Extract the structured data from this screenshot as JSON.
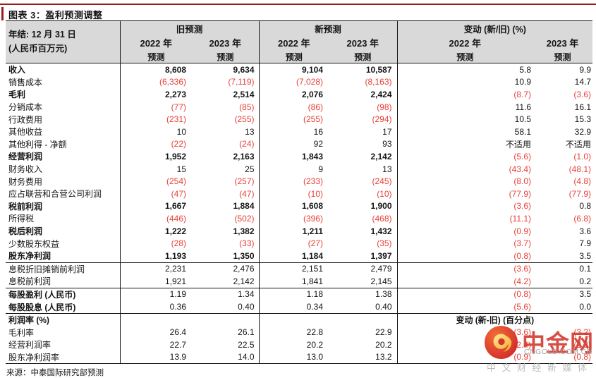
{
  "title": "图表 3：盈利预测调整",
  "source": "来源：中泰国际研究部预测",
  "colors": {
    "accent_maroon": "#9a1c20",
    "negative_red": "#e8403a",
    "header_gray": "#d9d9d9",
    "watermark_red": "#d2362b"
  },
  "header": {
    "label_line1": "年结: 12 月 31 日",
    "label_line2": "(人民币百万元)",
    "groups": [
      {
        "label": "旧预测"
      },
      {
        "label": "新预测"
      },
      {
        "label": "变动 (新/旧) (%)"
      }
    ],
    "year_2022": "2022 年",
    "year_2023": "2023 年",
    "forecast": "预测"
  },
  "table": {
    "rows": [
      {
        "label": "收入",
        "v": [
          "8,608",
          "9,634",
          "9,104",
          "10,587",
          "5.8",
          "9.9"
        ],
        "b": 2
      },
      {
        "label": "销售成本",
        "v": [
          "(6,336)",
          "(7,119)",
          "(7,028)",
          "(8,163)",
          "10.9",
          "14.7"
        ],
        "b": 0
      },
      {
        "label": "毛利",
        "v": [
          "2,273",
          "2,514",
          "2,076",
          "2,424",
          "(8.7)",
          "(3.6)"
        ],
        "b": 2
      },
      {
        "label": "分销成本",
        "v": [
          "(77)",
          "(85)",
          "(86)",
          "(98)",
          "11.6",
          "16.1"
        ],
        "b": 0
      },
      {
        "label": "行政费用",
        "v": [
          "(231)",
          "(255)",
          "(255)",
          "(294)",
          "10.5",
          "15.3"
        ],
        "b": 0
      },
      {
        "label": "其他收益",
        "v": [
          "10",
          "13",
          "16",
          "17",
          "58.1",
          "32.9"
        ],
        "b": 0
      },
      {
        "label": "其他利得 - 净额",
        "v": [
          "(22)",
          "(24)",
          "92",
          "93",
          "不适用",
          "不适用"
        ],
        "b": 0
      },
      {
        "label": "经营利润",
        "v": [
          "1,952",
          "2,163",
          "1,843",
          "2,142",
          "(5.6)",
          "(1.0)"
        ],
        "b": 2
      },
      {
        "label": "财务收入",
        "v": [
          "15",
          "25",
          "9",
          "13",
          "(43.4)",
          "(48.1)"
        ],
        "b": 0
      },
      {
        "label": "财务费用",
        "v": [
          "(254)",
          "(257)",
          "(233)",
          "(245)",
          "(8.0)",
          "(4.8)"
        ],
        "b": 0
      },
      {
        "label": "应占联营和合营公司利润",
        "v": [
          "(47)",
          "(47)",
          "(10)",
          "(10)",
          "(77.9)",
          "(77.9)"
        ],
        "b": 0
      },
      {
        "label": "税前利润",
        "v": [
          "1,667",
          "1,884",
          "1,608",
          "1,900",
          "(3.6)",
          "0.8"
        ],
        "b": 2
      },
      {
        "label": "所得税",
        "v": [
          "(446)",
          "(502)",
          "(396)",
          "(468)",
          "(11.1)",
          "(6.8)"
        ],
        "b": 0
      },
      {
        "label": "税后利润",
        "v": [
          "1,222",
          "1,382",
          "1,211",
          "1,432",
          "(0.9)",
          "3.6"
        ],
        "b": 2
      },
      {
        "label": "少数股东权益",
        "v": [
          "(28)",
          "(33)",
          "(27)",
          "(35)",
          "(3.7)",
          "7.9"
        ],
        "b": 0
      },
      {
        "label": "股东净利润",
        "v": [
          "1,193",
          "1,350",
          "1,184",
          "1,397",
          "(0.8)",
          "3.5"
        ],
        "b": 2,
        "rule": true
      },
      {
        "label": "息税折旧摊销前利润",
        "v": [
          "2,231",
          "2,476",
          "2,151",
          "2,479",
          "(3.6)",
          "0.1"
        ],
        "b": 0
      },
      {
        "label": "息税前利润",
        "v": [
          "1,921",
          "2,142",
          "1,841",
          "2,145",
          "(4.2)",
          "0.2"
        ],
        "b": 0,
        "rule": true
      },
      {
        "label": "每股盈利 (人民币)",
        "v": [
          "1.19",
          "1.34",
          "1.18",
          "1.38",
          "(0.8)",
          "3.5"
        ],
        "b": 1
      },
      {
        "label": "每股股息 (人民币)",
        "v": [
          "0.36",
          "0.40",
          "0.34",
          "0.40",
          "(5.6)",
          "0.0"
        ],
        "b": 1,
        "rule": true
      },
      {
        "label": "利润率 (%)",
        "v": [
          "",
          "",
          "",
          ""
        ],
        "span": "变动 (新-旧) (百分点)",
        "b": 1
      },
      {
        "label": "毛利率",
        "v": [
          "26.4",
          "26.1",
          "22.8",
          "22.9",
          "(3.6)",
          "(3.2)"
        ],
        "b": 0
      },
      {
        "label": "经营利润率",
        "v": [
          "22.7",
          "22.5",
          "20.2",
          "20.2",
          "(2.4)",
          "(2.3)"
        ],
        "b": 0
      },
      {
        "label": "股东净利润率",
        "v": [
          "13.9",
          "14.0",
          "13.0",
          "13.2",
          "(0.9)",
          "(0.8)"
        ],
        "b": 0,
        "rule": true
      }
    ]
  },
  "watermark": {
    "name": "中金网",
    "domain": "CNGOLD.COM.CN",
    "tagline": "中文财经新媒体"
  }
}
